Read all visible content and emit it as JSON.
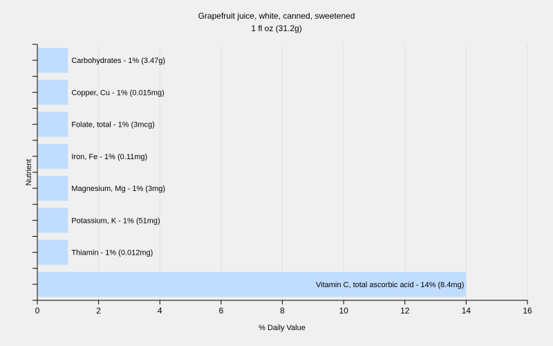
{
  "chart_data": {
    "type": "bar",
    "orientation": "horizontal",
    "title": "Grapefruit juice, white, canned, sweetened",
    "subtitle": "1 fl oz (31.2g)",
    "xlabel": "% Daily Value",
    "ylabel": "Nutrient",
    "xlim": [
      0,
      16
    ],
    "xticks": [
      "0",
      "2",
      "4",
      "6",
      "8",
      "10",
      "12",
      "14",
      "16"
    ],
    "grid": true,
    "colors": {
      "bar": "#c0dcff",
      "grid": "#e0e0e0",
      "plot_bg": "#f0f0f0"
    },
    "categories": [
      "Carbohydrates",
      "Copper, Cu",
      "Folate, total",
      "Iron, Fe",
      "Magnesium, Mg",
      "Potassium, K",
      "Thiamin",
      "Vitamin C, total ascorbic acid"
    ],
    "values": [
      1,
      1,
      1,
      1,
      1,
      1,
      1,
      14
    ],
    "labels": [
      "Carbohydrates - 1% (3.47g)",
      "Copper, Cu - 1% (0.015mg)",
      "Folate, total - 1% (3mcg)",
      "Iron, Fe - 1% (0.11mg)",
      "Magnesium, Mg - 1% (3mg)",
      "Potassium, K - 1% (51mg)",
      "Thiamin - 1% (0.012mg)",
      "Vitamin C, total ascorbic acid - 14% (8.4mg)"
    ]
  }
}
